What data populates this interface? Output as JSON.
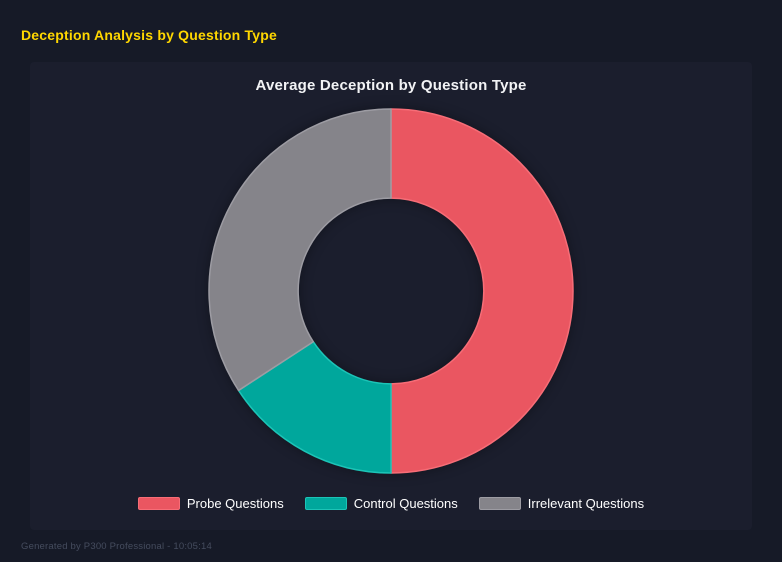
{
  "header": {
    "title": "Deception Analysis by Question Type"
  },
  "chart_data": {
    "type": "doughnut",
    "title": "Average Deception by Question Type",
    "categories": [
      "Probe Questions",
      "Control Questions",
      "Irrelevant Questions"
    ],
    "values_percent": [
      50,
      15.8,
      34.2
    ],
    "colors": [
      "#ea5661",
      "#00a79c",
      "#85848a"
    ],
    "border_colors": [
      "#f76d77",
      "#1cc4b7",
      "#9d9ca3"
    ],
    "legend_position": "bottom",
    "start_angle_deg": 0,
    "cutout_percent": 51
  },
  "footer": {
    "text": "Generated by P300 Professional - 10:05:14"
  },
  "theme": {
    "page_bg": "#161a27",
    "panel_bg": "#1b1e2d",
    "header_color": "#ffd700",
    "title_color": "#f2f3f5",
    "legend_text_color": "#ffffff",
    "footer_text_color": "#454c5e"
  }
}
